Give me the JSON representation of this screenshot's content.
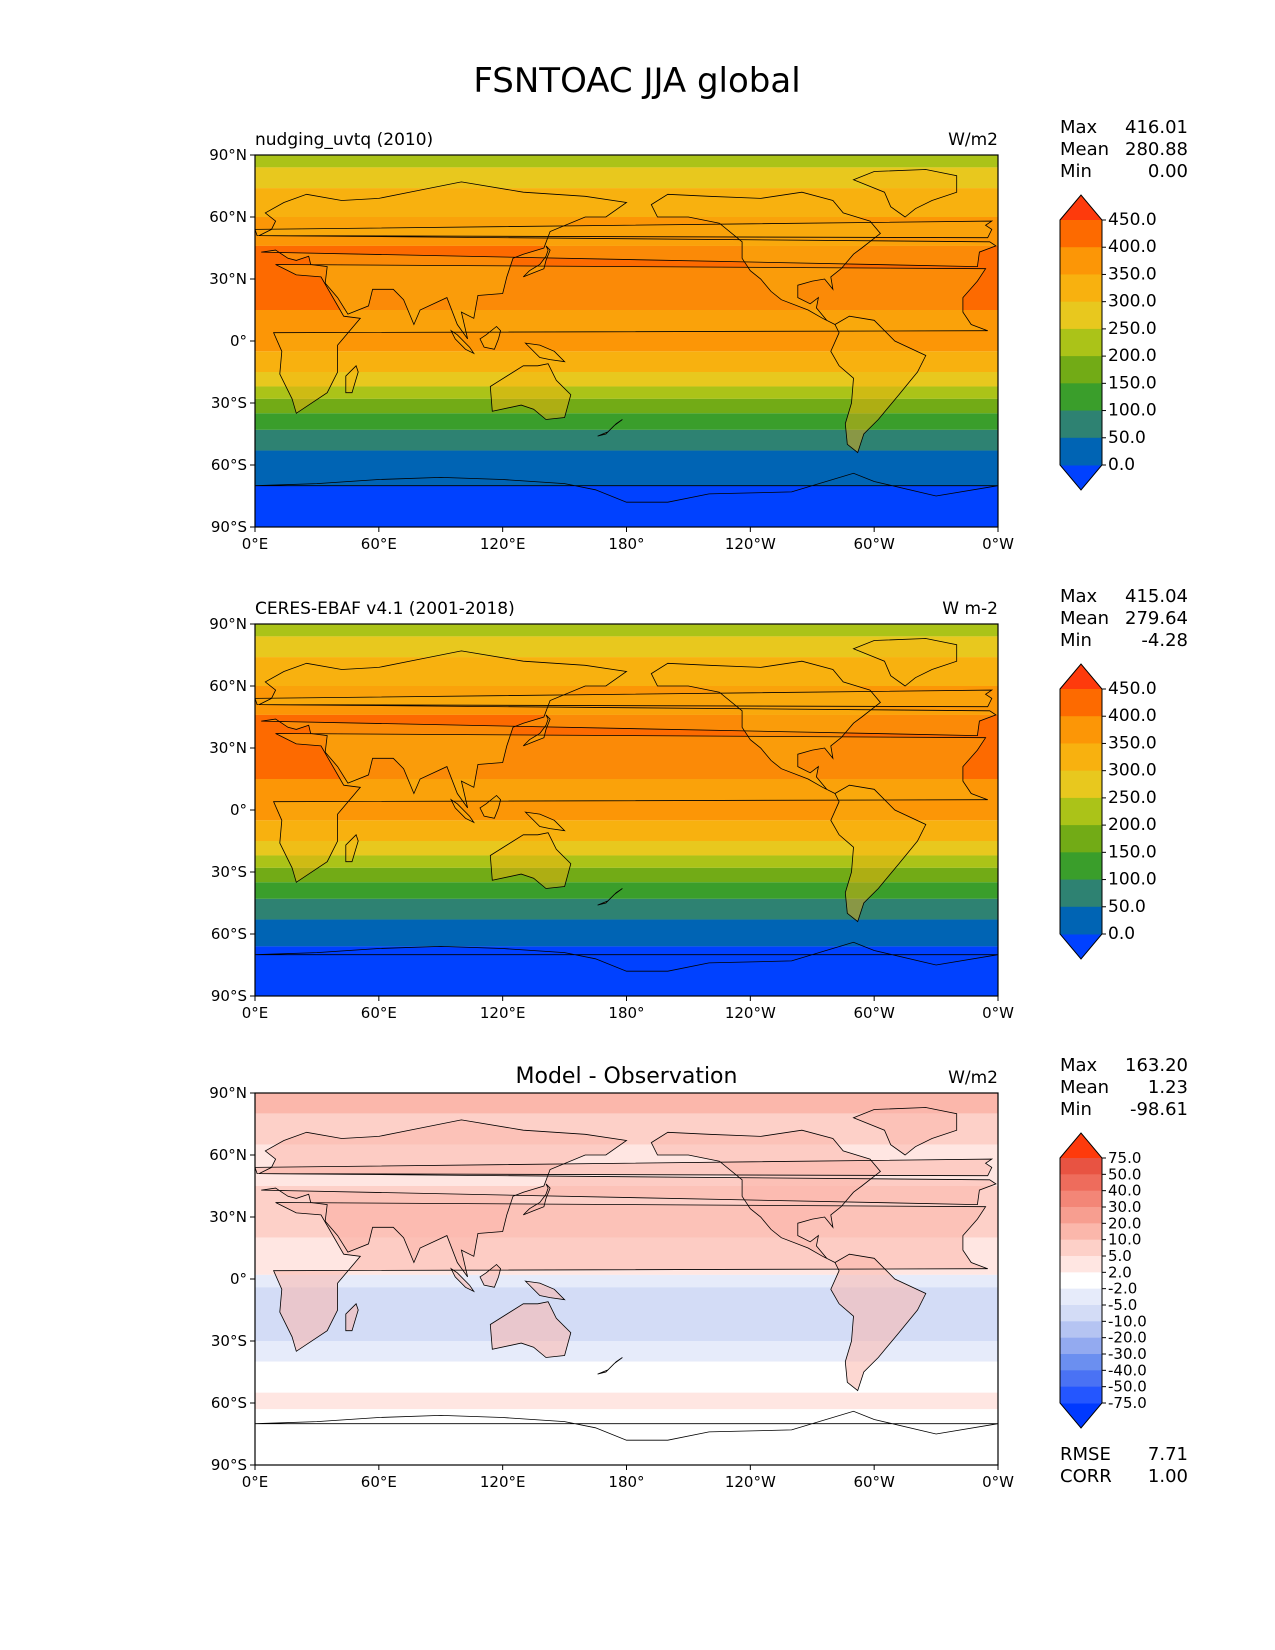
{
  "title": "FSNTOAC JJA global",
  "lon_ticks": [
    "0°E",
    "60°E",
    "120°E",
    "180°",
    "120°W",
    "60°W",
    "0°W"
  ],
  "lat_ticks": [
    "90°N",
    "60°N",
    "30°N",
    "0°",
    "30°S",
    "60°S",
    "90°S"
  ],
  "stats_labels": {
    "max": "Max",
    "mean": "Mean",
    "min": "Min",
    "rmse": "RMSE",
    "corr": "CORR"
  },
  "colors": {
    "field": [
      "#0041ff",
      "#0064b4",
      "#2e8272",
      "#3a9e2b",
      "#72ab16",
      "#abc318",
      "#e8c81e",
      "#f8b10f",
      "#fc9606",
      "#fd6a00",
      "#fe3a0c"
    ],
    "diff": [
      "#0039ff",
      "#2456ff",
      "#4a72f4",
      "#6b8ff0",
      "#93aaf0",
      "#b5c4f2",
      "#d3dcf6",
      "#e6ebfa",
      "#ffffff",
      "#ffe6e2",
      "#fdd0c8",
      "#fbb7ab",
      "#f79e90",
      "#f38677",
      "#ee6c5c",
      "#e85342",
      "#fe3a0c"
    ]
  },
  "panels": [
    {
      "left_title": "nudging_uvtq (2010)",
      "center_title": "",
      "units": "W/m2",
      "stats": {
        "max": "416.01",
        "mean": "280.88",
        "min": "0.00"
      },
      "levels": [
        "450.0",
        "400.0",
        "350.0",
        "300.0",
        "250.0",
        "200.0",
        "150.0",
        "100.0",
        "50.0",
        "0.0"
      ]
    },
    {
      "left_title": "CERES-EBAF v4.1 (2001-2018)",
      "center_title": "",
      "units": "W m-2",
      "stats": {
        "max": "415.04",
        "mean": "279.64",
        "min": "-4.28"
      },
      "levels": [
        "450.0",
        "400.0",
        "350.0",
        "300.0",
        "250.0",
        "200.0",
        "150.0",
        "100.0",
        "50.0",
        "0.0"
      ]
    },
    {
      "left_title": "",
      "center_title": "Model - Observation",
      "units": "W/m2",
      "stats": {
        "max": "163.20",
        "mean": "1.23",
        "min": "-98.61",
        "rmse": "7.71",
        "corr": "1.00"
      },
      "levels": [
        "75.0",
        "50.0",
        "40.0",
        "30.0",
        "20.0",
        "10.0",
        "5.0",
        "2.0",
        "-2.0",
        "-5.0",
        "-10.0",
        "-20.0",
        "-30.0",
        "-40.0",
        "-50.0",
        "-75.0"
      ]
    }
  ]
}
